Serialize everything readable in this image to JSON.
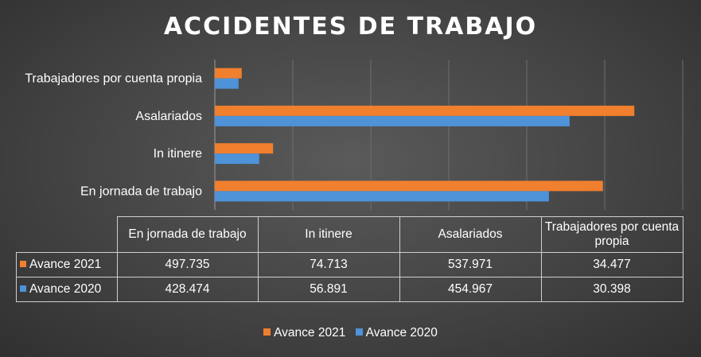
{
  "chart_data": {
    "type": "bar",
    "orientation": "horizontal",
    "title": "ACCIDENTES DE TRABAJO",
    "categories": [
      "En jornada de trabajo",
      "In itinere",
      "Asalariados",
      "Trabajadores por cuenta propia"
    ],
    "series": [
      {
        "name": "Avance 2021",
        "color": "#F07F2E",
        "values": [
          497735,
          74713,
          537971,
          34477
        ],
        "labels": [
          "497.735",
          "74.713",
          "537.971",
          "34.477"
        ]
      },
      {
        "name": "Avance 2020",
        "color": "#4E92D8",
        "values": [
          428474,
          56891,
          454967,
          30398
        ],
        "labels": [
          "428.474",
          "56.891",
          "454.967",
          "30.398"
        ]
      }
    ],
    "xlim": [
      0,
      600000
    ],
    "grid": true,
    "legend_position": "bottom",
    "data_table": true
  }
}
